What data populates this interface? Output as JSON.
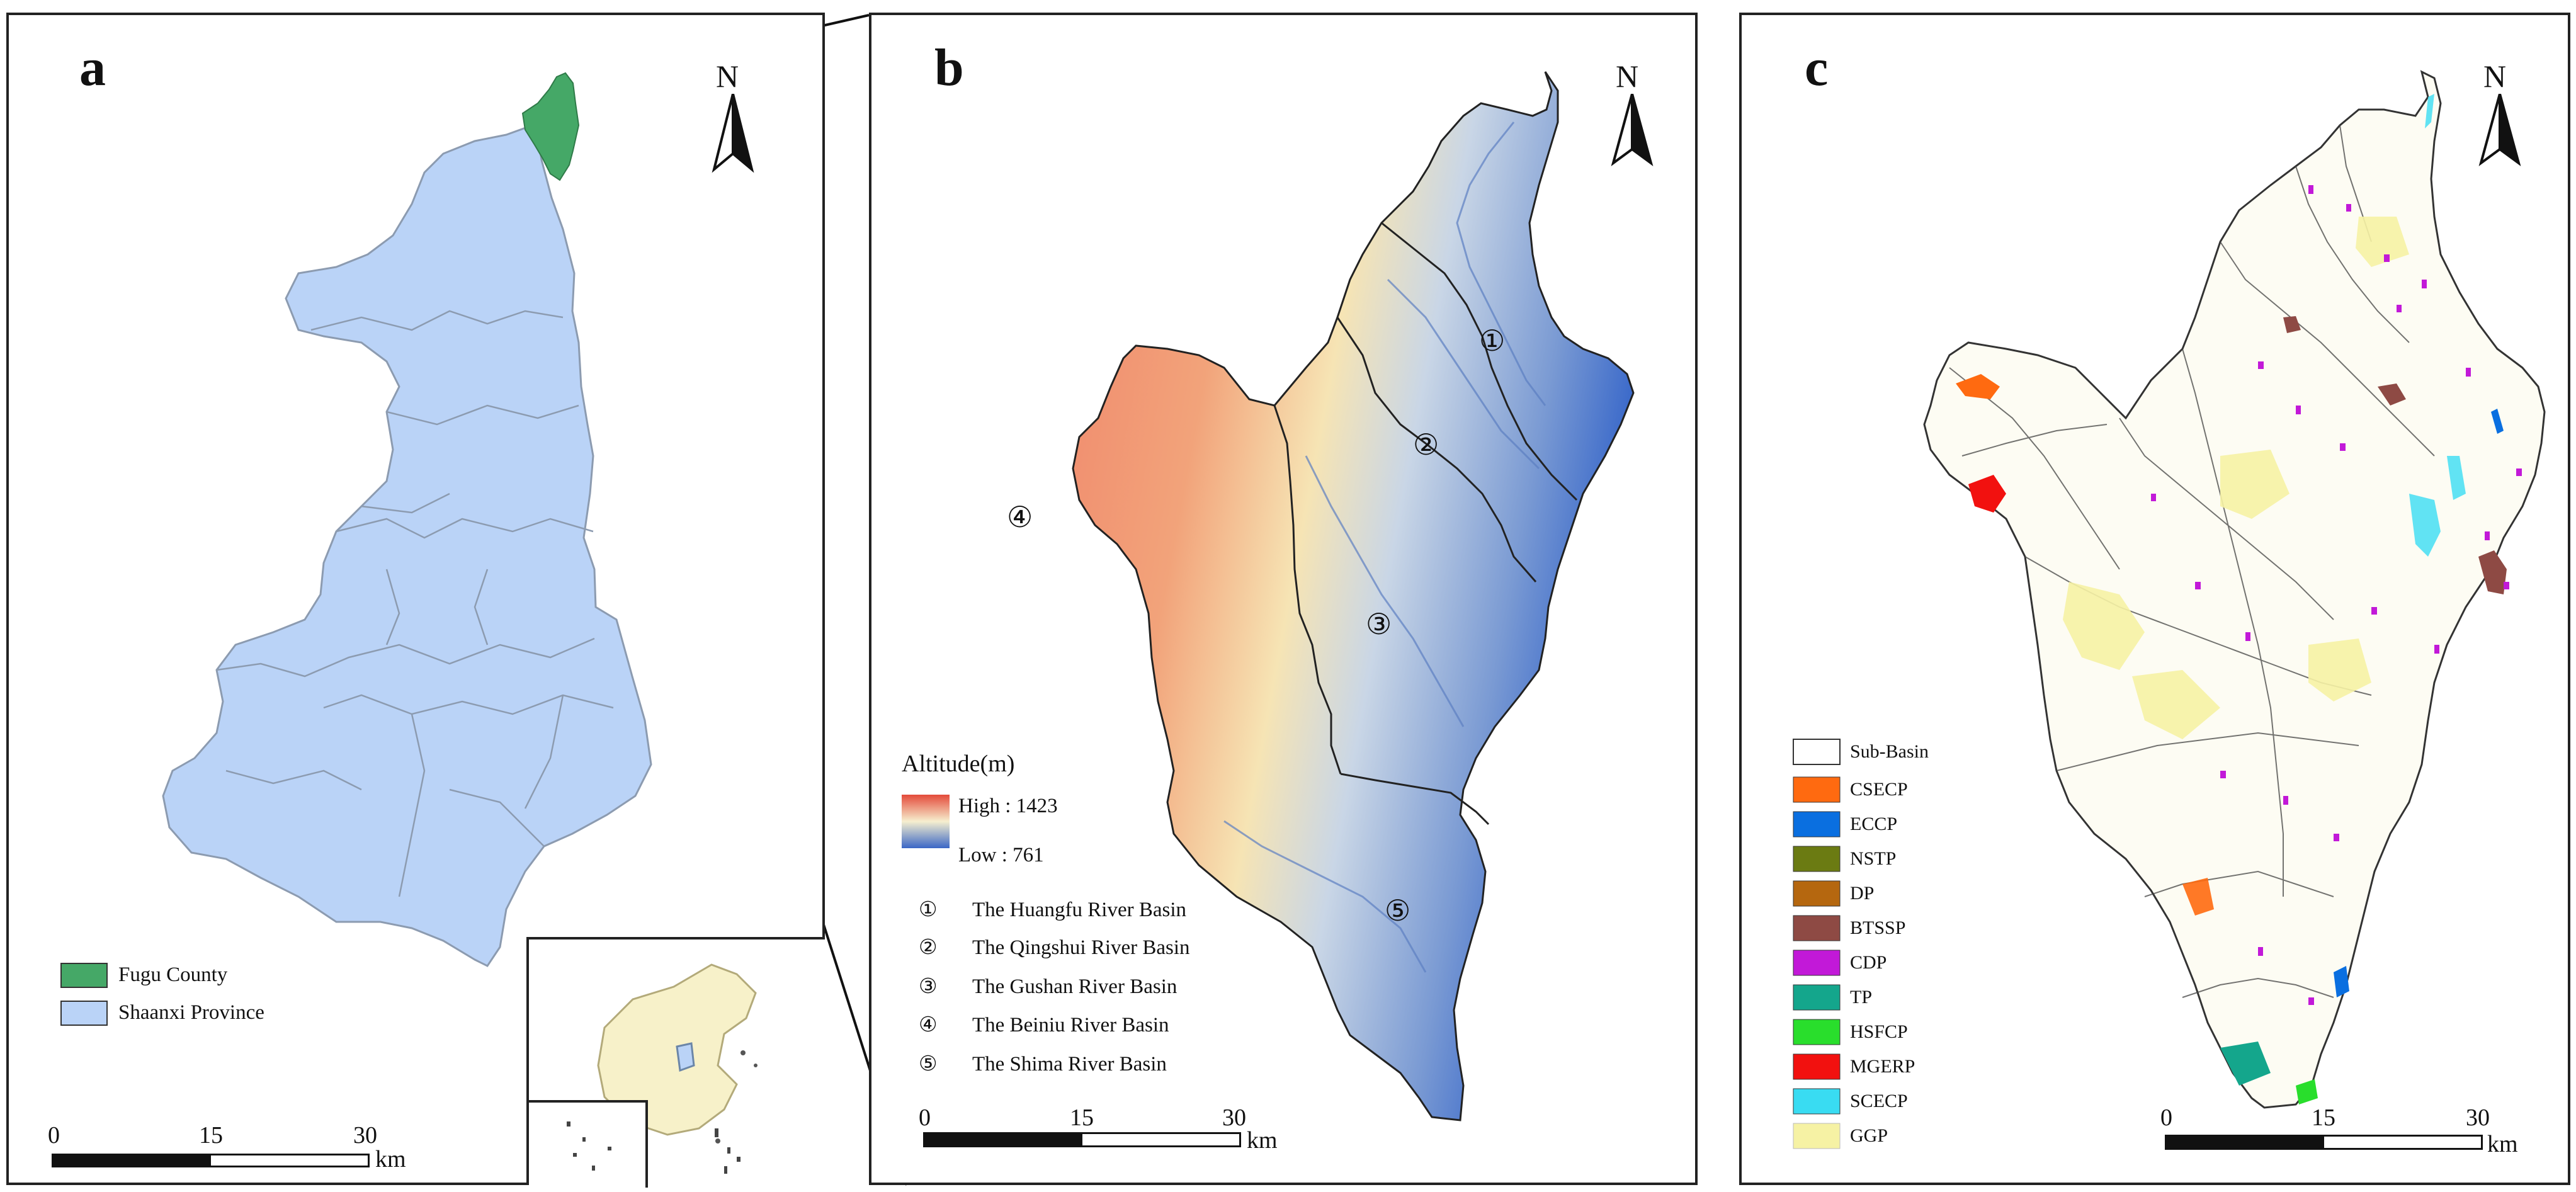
{
  "panel_a": {
    "label": "a",
    "north": "N",
    "legend": [
      {
        "label": "Fugu County",
        "color": "#45a867"
      },
      {
        "label": "Shaanxi Province",
        "color": "#bad3f7"
      }
    ],
    "scale": {
      "ticks": [
        "0",
        "15",
        "30"
      ],
      "unit": "km"
    }
  },
  "panel_b": {
    "label": "b",
    "north": "N",
    "altitude": {
      "title": "Altitude(m)",
      "high": "High : 1423",
      "low": "Low : 761"
    },
    "basin_markers": [
      "①",
      "②",
      "③",
      "④",
      "⑤"
    ],
    "basins": [
      {
        "num": "①",
        "name": "The Huangfu River Basin"
      },
      {
        "num": "②",
        "name": "The Qingshui River Basin"
      },
      {
        "num": "③",
        "name": "The Gushan River Basin"
      },
      {
        "num": "④",
        "name": "The Beiniu River Basin"
      },
      {
        "num": "⑤",
        "name": "The Shima River Basin"
      }
    ],
    "scale": {
      "ticks": [
        "0",
        "15",
        "30"
      ],
      "unit": "km"
    }
  },
  "panel_c": {
    "label": "c",
    "north": "N",
    "legend": [
      {
        "label": "Sub-Basin",
        "color": "#ffffff"
      },
      {
        "label": "CSECP",
        "color": "#ff6a10"
      },
      {
        "label": "ECCP",
        "color": "#0a6fe0"
      },
      {
        "label": "NSTP",
        "color": "#6b7b12"
      },
      {
        "label": "DP",
        "color": "#b5670f"
      },
      {
        "label": "BTSSP",
        "color": "#8e4a44"
      },
      {
        "label": "CDP",
        "color": "#c219d8"
      },
      {
        "label": "TP",
        "color": "#14a68c"
      },
      {
        "label": "HSFCP",
        "color": "#29de2c"
      },
      {
        "label": "MGERP",
        "color": "#f2110f"
      },
      {
        "label": "SCECP",
        "color": "#39dcf2"
      },
      {
        "label": "GGP",
        "color": "#f6f2a4"
      }
    ],
    "scale": {
      "ticks": [
        "0",
        "15",
        "30"
      ],
      "unit": "km"
    }
  }
}
